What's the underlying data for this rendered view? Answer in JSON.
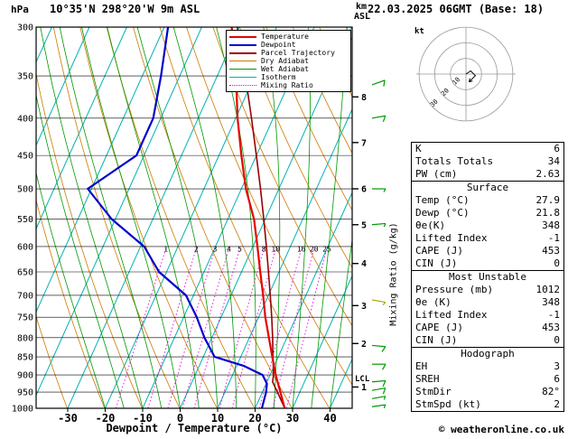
{
  "header": {
    "title": "10°35'N 298°20'W 9m ASL",
    "datetime": "22.03.2025 06GMT (Base: 18)"
  },
  "axes": {
    "pressure_unit": "hPa",
    "pressure_ticks": [
      300,
      350,
      400,
      450,
      500,
      550,
      600,
      650,
      700,
      750,
      800,
      850,
      900,
      950,
      1000
    ],
    "temp_ticks": [
      -30,
      -20,
      -10,
      0,
      10,
      20,
      30,
      40
    ],
    "temp_axis_label": "Dewpoint / Temperature (°C)",
    "km_unit": "km",
    "asl_label": "ASL",
    "km_ticks": [
      {
        "km": 8,
        "p": 374
      },
      {
        "km": 7,
        "p": 432
      },
      {
        "km": 6,
        "p": 500
      },
      {
        "km": 5,
        "p": 560
      },
      {
        "km": 4,
        "p": 633
      },
      {
        "km": 3,
        "p": 723
      },
      {
        "km": 2,
        "p": 815
      },
      {
        "km": 1,
        "p": 935
      }
    ],
    "lcl": {
      "label": "LCL",
      "p": 910
    },
    "mixing_axis_label": "Mixing Ratio (g/kg)"
  },
  "colors": {
    "temperature": "#e60000",
    "dewpoint": "#0000cc",
    "parcel": "#990000",
    "dry_adiabat": "#cc7a00",
    "wet_adiabat": "#009900",
    "isotherm": "#00b2b2",
    "mixing_ratio": "#e600e6",
    "wind_barb": "#009900",
    "grid": "#000000"
  },
  "legend": {
    "items": [
      {
        "label": "Temperature",
        "color": "#e60000",
        "thick": true
      },
      {
        "label": "Dewpoint",
        "color": "#0000cc",
        "thick": true
      },
      {
        "label": "Parcel Trajectory",
        "color": "#990000",
        "thick": true
      },
      {
        "label": "Dry Adiabat",
        "color": "#cc7a00"
      },
      {
        "label": "Wet Adiabat",
        "color": "#009900"
      },
      {
        "label": "Isotherm",
        "color": "#00b2b2"
      },
      {
        "label": "Mixing Ratio",
        "color": "#e600e6",
        "dotted": true
      }
    ]
  },
  "hodograph": {
    "unit_label": "kt",
    "rings_kt": [
      10,
      20,
      30
    ]
  },
  "stats": {
    "blocks": [
      {
        "rows": [
          [
            "K",
            "6"
          ],
          [
            "Totals Totals",
            "34"
          ],
          [
            "PW (cm)",
            "2.63"
          ]
        ]
      },
      {
        "header": "Surface",
        "rows": [
          [
            "Temp (°C)",
            "27.9"
          ],
          [
            "Dewp (°C)",
            "21.8"
          ],
          [
            "θe(K)",
            "348"
          ],
          [
            "Lifted Index",
            "-1"
          ],
          [
            "CAPE (J)",
            "453"
          ],
          [
            "CIN (J)",
            "0"
          ]
        ]
      },
      {
        "header": "Most Unstable",
        "rows": [
          [
            "Pressure (mb)",
            "1012"
          ],
          [
            "θe (K)",
            "348"
          ],
          [
            "Lifted Index",
            "-1"
          ],
          [
            "CAPE (J)",
            "453"
          ],
          [
            "CIN (J)",
            "0"
          ]
        ]
      },
      {
        "header": "Hodograph",
        "rows": [
          [
            "EH",
            "3"
          ],
          [
            "SREH",
            "6"
          ],
          [
            "StmDir",
            "82°"
          ],
          [
            "StmSpd (kt)",
            "2"
          ]
        ]
      }
    ]
  },
  "footer": {
    "copyright": "© weatheronline.co.uk"
  },
  "chart_data": {
    "type": "skewt-log-p",
    "pressure_range_hPa": [
      300,
      1000
    ],
    "isotherm_step_c": 10,
    "dry_adiabat_step_k": 10,
    "wet_adiabat_surface_temps_c": [
      -20,
      -15,
      -10,
      -5,
      0,
      5,
      10,
      15,
      20,
      25,
      30,
      35,
      40
    ],
    "mixing_ratio_g_kg": [
      1,
      2,
      3,
      4,
      5,
      8,
      10,
      16,
      20,
      25
    ],
    "temperature_profile": {
      "pressure_hPa": [
        1000,
        950,
        900,
        850,
        800,
        750,
        700,
        650,
        600,
        550,
        500,
        450,
        400,
        350,
        300
      ],
      "temp_c": [
        27.9,
        24.8,
        21.5,
        18.4,
        15.2,
        11.8,
        8.6,
        5.0,
        1.2,
        -3.0,
        -8.8,
        -14.0,
        -19.5,
        -25.0,
        -32.0
      ]
    },
    "dewpoint_profile": {
      "pressure_hPa": [
        1000,
        950,
        925,
        900,
        875,
        850,
        800,
        750,
        700,
        650,
        600,
        550,
        500,
        450,
        400,
        350,
        300
      ],
      "temp_c": [
        21.8,
        21.0,
        20.2,
        18.0,
        12.0,
        3.0,
        -2.0,
        -6.5,
        -12.0,
        -22.0,
        -29.0,
        -41.0,
        -51.0,
        -42.0,
        -42.0,
        -45.0,
        -49.0
      ]
    },
    "parcel_profile": {
      "pressure_hPa": [
        1000,
        950,
        920,
        900,
        850,
        800,
        750,
        700,
        650,
        600,
        550,
        500,
        450,
        400,
        350,
        300
      ],
      "temp_c": [
        27.9,
        24.0,
        21.5,
        20.9,
        18.6,
        16.2,
        13.5,
        10.5,
        7.2,
        3.6,
        -0.4,
        -4.9,
        -10.0,
        -15.8,
        -22.5,
        -30.5
      ]
    },
    "wind_barbs": [
      {
        "p": 360,
        "spd_kt": 10,
        "dir_deg": 70
      },
      {
        "p": 400,
        "spd_kt": 10,
        "dir_deg": 80
      },
      {
        "p": 500,
        "spd_kt": 5,
        "dir_deg": 90
      },
      {
        "p": 560,
        "spd_kt": 5,
        "dir_deg": 85
      },
      {
        "p": 710,
        "spd_kt": 5,
        "dir_deg": 100,
        "color": "#a8a800"
      },
      {
        "p": 820,
        "spd_kt": 10,
        "dir_deg": 95
      },
      {
        "p": 870,
        "spd_kt": 10,
        "dir_deg": 90
      },
      {
        "p": 920,
        "spd_kt": 10,
        "dir_deg": 85
      },
      {
        "p": 945,
        "spd_kt": 10,
        "dir_deg": 80
      },
      {
        "p": 970,
        "spd_kt": 5,
        "dir_deg": 80
      },
      {
        "p": 995,
        "spd_kt": 5,
        "dir_deg": 82
      }
    ],
    "hodograph_trace_kt": [
      [
        0,
        0
      ],
      [
        3,
        2
      ],
      [
        6,
        -1
      ],
      [
        2,
        -5
      ]
    ]
  }
}
